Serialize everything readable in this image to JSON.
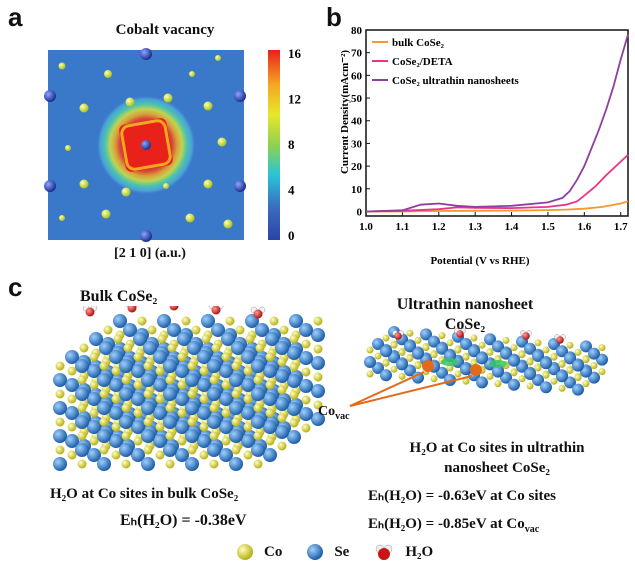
{
  "panel_labels": {
    "a": "a",
    "b": "b",
    "c": "c"
  },
  "panel_a": {
    "title": "Cobalt vacancy",
    "xlabel": "[2 1 0] (a.u.)",
    "colorbar_ticks": [
      "16",
      "12",
      "8",
      "4",
      "0"
    ],
    "colorbar_colors": [
      "#e8211a",
      "#f5a623",
      "#e7e72a",
      "#8fd14f",
      "#28c4d8",
      "#3b6fc2",
      "#2b44a6"
    ],
    "map_bg": "#3a78c9"
  },
  "panel_c": {
    "bulk_title": "Bulk CoSe₂",
    "ultra_title_line1": "Ultrathin nanosheet",
    "ultra_title_line2": "CoSe₂",
    "co_vac_label": "Co",
    "co_vac_sub": "vac",
    "bulk_caption": "H₂O at Co sites in bulk CoSe₂",
    "bulk_energy": "Eₕ(H₂O) = -0.38eV",
    "ultra_caption_line1": "H₂O at Co sites in ultrathin",
    "ultra_caption_line2": "nanosheet CoSe₂",
    "ultra_energy_1": "Eₕ(H₂O) = -0.63eV at Co sites",
    "ultra_energy_2": "Eₕ(H₂O) = -0.85eV at Co",
    "ultra_energy_2_sub": "vac",
    "legend": [
      "Co",
      "Se",
      "H₂O"
    ],
    "colors": {
      "co": "#e6e21f",
      "se": "#2f7fd0",
      "o": "#d81e1e",
      "h": "#eeeeee",
      "vac": "#e36a1a"
    }
  },
  "chart_data": {
    "type": "line",
    "xlabel": "Potential (V vs RHE)",
    "ylabel": "Current Density(mAcm⁻²)",
    "xlim": [
      1.0,
      1.72
    ],
    "ylim": [
      -2,
      80
    ],
    "x_ticks": [
      "1.0",
      "1.1",
      "1.2",
      "1.3",
      "1.4",
      "1.5",
      "1.6",
      "1.7"
    ],
    "y_ticks": [
      "0",
      "10",
      "20",
      "30",
      "40",
      "50",
      "60",
      "70",
      "80"
    ],
    "legend_position": "top-left",
    "series": [
      {
        "name": "bulk CoSe₂",
        "color": "#f29a2e",
        "x": [
          1.0,
          1.1,
          1.2,
          1.3,
          1.4,
          1.5,
          1.55,
          1.6,
          1.65,
          1.7,
          1.72
        ],
        "y": [
          0,
          0,
          0.2,
          0.3,
          0.4,
          0.6,
          0.8,
          1.2,
          2.0,
          3.5,
          4.5
        ]
      },
      {
        "name": "CoSe₂/DETA",
        "color": "#e8358a",
        "x": [
          1.0,
          1.1,
          1.2,
          1.25,
          1.3,
          1.4,
          1.5,
          1.55,
          1.58,
          1.6,
          1.63,
          1.66,
          1.7,
          1.72
        ],
        "y": [
          0,
          0.3,
          1.0,
          1.8,
          1.6,
          1.5,
          2.0,
          3.0,
          4.5,
          7.0,
          11.0,
          16.0,
          22.0,
          25.0
        ]
      },
      {
        "name": "CoSe₂ ultrathin nanosheets",
        "color": "#8e3fa0",
        "x": [
          1.0,
          1.1,
          1.15,
          1.2,
          1.25,
          1.3,
          1.4,
          1.5,
          1.54,
          1.56,
          1.58,
          1.6,
          1.62,
          1.64,
          1.66,
          1.68,
          1.7,
          1.72
        ],
        "y": [
          0,
          0.5,
          3.0,
          3.5,
          2.5,
          2.0,
          2.5,
          4.0,
          6.0,
          9.0,
          14.0,
          20.0,
          28.0,
          36.0,
          45.0,
          55.0,
          67.0,
          78.0
        ]
      }
    ]
  }
}
